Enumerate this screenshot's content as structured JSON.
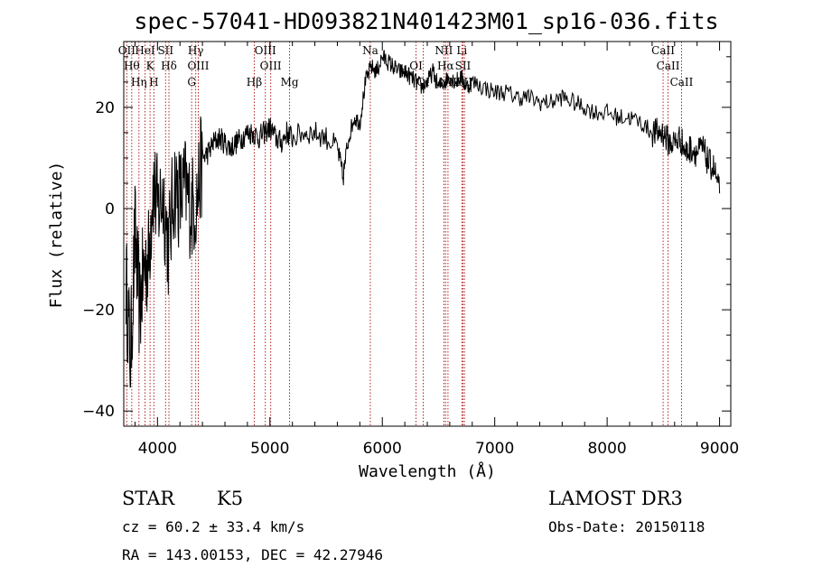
{
  "chart_data": {
    "type": "line",
    "title": "spec-57041-HD093821N401423M01_sp16-036.fits",
    "xlabel": "Wavelength (Å)",
    "ylabel": "Flux (relative)",
    "xlim": [
      3700,
      9100
    ],
    "ylim": [
      -43,
      33
    ],
    "xticks": [
      4000,
      5000,
      6000,
      7000,
      8000,
      9000
    ],
    "yticks": [
      -40,
      -20,
      0,
      20
    ],
    "grid": false,
    "line_color": "#000000",
    "marker_color": "#b22222",
    "spectrum": {
      "x": [
        3720,
        3760,
        3800,
        3840,
        3880,
        3920,
        3960,
        4000,
        4050,
        4100,
        4150,
        4200,
        4250,
        4300,
        4350,
        4400,
        4450,
        4500,
        4550,
        4600,
        4650,
        4700,
        4750,
        4800,
        4850,
        4900,
        4950,
        5000,
        5050,
        5100,
        5150,
        5200,
        5300,
        5400,
        5500,
        5600,
        5650,
        5700,
        5750,
        5800,
        5850,
        5900,
        5950,
        6000,
        6050,
        6100,
        6150,
        6200,
        6250,
        6300,
        6350,
        6400,
        6450,
        6500,
        6550,
        6600,
        6650,
        6700,
        6750,
        6800,
        6900,
        7000,
        7100,
        7200,
        7300,
        7400,
        7500,
        7600,
        7700,
        7800,
        7900,
        8000,
        8100,
        8200,
        8300,
        8400,
        8450,
        8500,
        8550,
        8600,
        8650,
        8700,
        8750,
        8800,
        8850,
        8900,
        8950,
        9000
      ],
      "y": [
        -14,
        -30,
        -5,
        -20,
        -12,
        -10,
        5,
        0,
        3,
        -8,
        5,
        2,
        4,
        0,
        2,
        10,
        11,
        13,
        14,
        13,
        12,
        13,
        14,
        15,
        15,
        14,
        15,
        16,
        14,
        13,
        15,
        14,
        15,
        15,
        14,
        12,
        6,
        14,
        18,
        17,
        25,
        28,
        27,
        30,
        29,
        28,
        27,
        27,
        26,
        25,
        24,
        25,
        27,
        24,
        25,
        26,
        25,
        26,
        24,
        25,
        24,
        23,
        23,
        22,
        22,
        21,
        21,
        22,
        21,
        20,
        19,
        19,
        18,
        18,
        17,
        15,
        15,
        15,
        13,
        13,
        14,
        11,
        12,
        11,
        12,
        9,
        8,
        3
      ]
    },
    "lines": [
      {
        "name": "OII",
        "x": 3727
      },
      {
        "name": "Hθ",
        "x": 3771
      },
      {
        "name": "Hη",
        "x": 3835
      },
      {
        "name": "HeI",
        "x": 3889
      },
      {
        "name": "K",
        "x": 3934
      },
      {
        "name": "H",
        "x": 3968
      },
      {
        "name": "SII",
        "x": 4072
      },
      {
        "name": "Hδ",
        "x": 4102
      },
      {
        "name": "G",
        "x": 4304
      },
      {
        "name": "Hγ",
        "x": 4340
      },
      {
        "name": "OIII",
        "x": 4363
      },
      {
        "name": "Hβ",
        "x": 4861
      },
      {
        "name": "OIII",
        "x": 4959
      },
      {
        "name": "OIII",
        "x": 5007
      },
      {
        "name": "Mg",
        "x": 5175
      },
      {
        "name": "Na",
        "x": 5893
      },
      {
        "name": "OI",
        "x": 6300
      },
      {
        "name": "OI",
        "x": 6364
      },
      {
        "name": "NII",
        "x": 6548
      },
      {
        "name": "Hα",
        "x": 6563
      },
      {
        "name": "NII",
        "x": 6584
      },
      {
        "name": "Li",
        "x": 6708
      },
      {
        "name": "SII",
        "x": 6717
      },
      {
        "name": "SII",
        "x": 6731
      },
      {
        "name": "CaII",
        "x": 8498
      },
      {
        "name": "CaII",
        "x": 8542
      },
      {
        "name": "CaII",
        "x": 8662
      }
    ]
  },
  "info": {
    "class": "STAR",
    "subclass": "K5",
    "survey": "LAMOST DR3",
    "cz": "cz = 60.2 ± 33.4 km/s",
    "obs_date": "Obs-Date: 20150118",
    "coords": "RA = 143.00153, DEC =  42.27946"
  }
}
